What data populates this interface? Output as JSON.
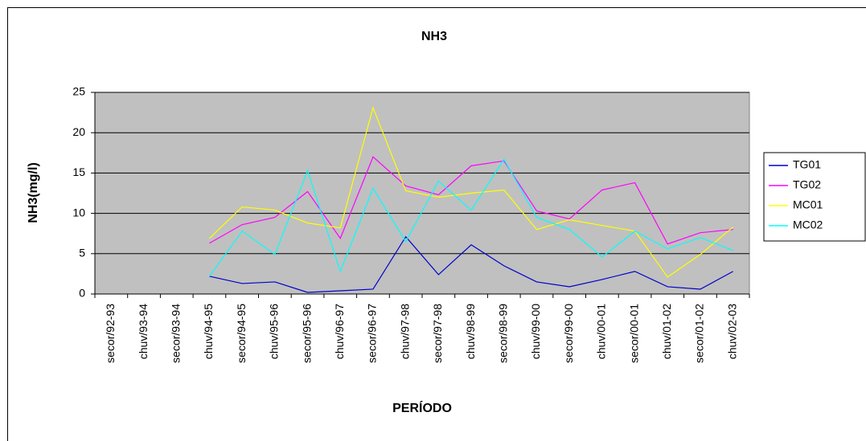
{
  "chart_data": {
    "type": "line",
    "title": "NH3",
    "y_label": "NH3(mg/l)",
    "x_label": "PERÍODO",
    "categories": [
      "secor/92-93",
      "chuv/93-94",
      "secor/93-94",
      "chuv/94-95",
      "secor/94-95",
      "chuv/95-96",
      "secor/95-96",
      "chuv/96-97",
      "secor/96-97",
      "chuv/97-98",
      "secor/97-98",
      "chuv/98-99",
      "secor/98-99",
      "chuv/99-00",
      "secor/99-00",
      "chuv/00-01",
      "secor/00-01",
      "chuv/01-02",
      "secor/01-02",
      "chuv/02-03"
    ],
    "series": [
      {
        "name": "TG01",
        "color": "#0000cc",
        "values": [
          null,
          null,
          null,
          2.2,
          1.3,
          1.5,
          0.2,
          0.4,
          0.6,
          7.1,
          2.4,
          6.1,
          3.5,
          1.5,
          0.9,
          1.8,
          2.8,
          0.9,
          0.6,
          2.8
        ]
      },
      {
        "name": "TG02",
        "color": "#ff00ff",
        "values": [
          null,
          null,
          null,
          6.3,
          8.6,
          9.5,
          12.7,
          6.9,
          17.0,
          13.4,
          12.3,
          15.9,
          16.5,
          10.3,
          9.3,
          12.9,
          13.8,
          6.2,
          7.6,
          8.0
        ]
      },
      {
        "name": "MC01",
        "color": "#ffff00",
        "values": [
          null,
          null,
          null,
          6.9,
          10.8,
          10.4,
          8.8,
          8.2,
          23.1,
          12.8,
          12.0,
          12.5,
          12.9,
          8.0,
          9.2,
          8.5,
          7.8,
          2.1,
          4.9,
          8.3
        ]
      },
      {
        "name": "MC02",
        "color": "#00ffff",
        "values": [
          null,
          null,
          null,
          2.2,
          7.8,
          4.9,
          15.3,
          2.8,
          13.1,
          6.5,
          14.0,
          10.4,
          16.7,
          9.5,
          8.0,
          4.6,
          7.8,
          5.6,
          7.0,
          5.4
        ]
      }
    ],
    "ylim": [
      0,
      25
    ],
    "yticks": [
      0,
      5,
      10,
      15,
      20,
      25
    ],
    "grid": true,
    "legend": "right"
  }
}
